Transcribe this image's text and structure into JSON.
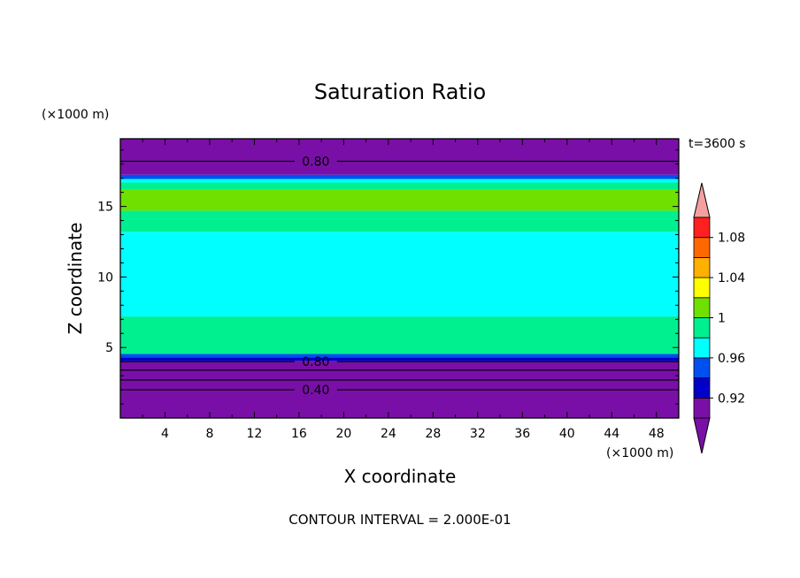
{
  "chart_data": {
    "type": "heatmap",
    "title": "Saturation Ratio",
    "xlabel": "X coordinate",
    "ylabel": "Z coordinate",
    "x_unit": "(×1000 m)",
    "y_unit": "(×1000 m)",
    "time_label": "t=3600 s",
    "footer": "CONTOUR INTERVAL = 2.000E-01",
    "xlim": [
      0,
      50
    ],
    "ylim": [
      0,
      19.8
    ],
    "x_ticks": [
      4,
      8,
      12,
      16,
      20,
      24,
      28,
      32,
      36,
      40,
      44,
      48
    ],
    "x_tick_labels": [
      "4",
      "8",
      "12",
      "16",
      "20",
      "24",
      "28",
      "32",
      "36",
      "40",
      "44",
      "48"
    ],
    "y_ticks": [
      5,
      10,
      15
    ],
    "y_tick_labels": [
      "5",
      "10",
      "15"
    ],
    "bands": [
      {
        "z0": 0.0,
        "z1": 4.05,
        "level": 0
      },
      {
        "z0": 4.05,
        "z1": 4.3,
        "level": 1
      },
      {
        "z0": 4.3,
        "z1": 4.55,
        "level": 2
      },
      {
        "z0": 4.55,
        "z1": 7.2,
        "level": 4
      },
      {
        "z0": 7.2,
        "z1": 13.2,
        "level": 3
      },
      {
        "z0": 13.2,
        "z1": 14.7,
        "level": 4
      },
      {
        "z0": 14.7,
        "z1": 16.2,
        "level": 5
      },
      {
        "z0": 16.2,
        "z1": 16.7,
        "level": 4
      },
      {
        "z0": 16.7,
        "z1": 16.95,
        "level": 3
      },
      {
        "z0": 16.95,
        "z1": 17.25,
        "level": 2
      },
      {
        "z0": 17.25,
        "z1": 19.8,
        "level": 0
      }
    ],
    "contour_lines": [
      {
        "z": 2.0,
        "label": "0.40"
      },
      {
        "z": 2.7,
        "label": ""
      },
      {
        "z": 3.4,
        "label": ""
      },
      {
        "z": 4.0,
        "label": "0.80"
      },
      {
        "z": 18.2,
        "label": "0.80"
      }
    ],
    "colorbar": {
      "levels": [
        0.9,
        0.92,
        0.94,
        0.96,
        0.98,
        1.0,
        1.02,
        1.04,
        1.06,
        1.08,
        1.1
      ],
      "labels": [
        "0.92",
        "0.96",
        "1",
        "1.04",
        "1.08"
      ],
      "colors": [
        "#7a0fa8",
        "#0000c8",
        "#0050f0",
        "#00ffff",
        "#00f090",
        "#70e000",
        "#ffff00",
        "#ffb000",
        "#ff6800",
        "#ff2020"
      ],
      "under_color": "#7a0fa8",
      "over_color": "#f4a0a0"
    }
  }
}
